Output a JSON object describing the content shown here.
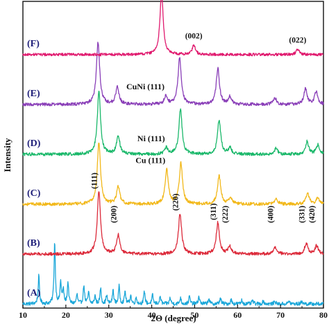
{
  "chart_data": {
    "type": "line",
    "title": "",
    "xlabel": "2Θ (degree)",
    "ylabel": "Intensity",
    "xlim": [
      10,
      80
    ],
    "x_ticks": [
      10,
      20,
      30,
      40,
      50,
      60,
      70,
      80
    ],
    "stacked_offset": true,
    "grid": false,
    "series": [
      {
        "name": "(A)",
        "color": "#1ba7d9",
        "baseline": 0,
        "peaks": [
          {
            "x": 13.7,
            "h": 0.45
          },
          {
            "x": 17.4,
            "h": 1.0
          },
          {
            "x": 18.8,
            "h": 0.35
          },
          {
            "x": 19.4,
            "h": 0.22
          },
          {
            "x": 20.5,
            "h": 0.35
          },
          {
            "x": 22.6,
            "h": 0.15
          },
          {
            "x": 24.2,
            "h": 0.3
          },
          {
            "x": 25.3,
            "h": 0.18
          },
          {
            "x": 26.8,
            "h": 0.13
          },
          {
            "x": 28.1,
            "h": 0.25
          },
          {
            "x": 29.5,
            "h": 0.14
          },
          {
            "x": 31.0,
            "h": 0.22
          },
          {
            "x": 32.4,
            "h": 0.28
          },
          {
            "x": 33.8,
            "h": 0.2
          },
          {
            "x": 35.1,
            "h": 0.14
          },
          {
            "x": 36.4,
            "h": 0.1
          },
          {
            "x": 38.3,
            "h": 0.2
          },
          {
            "x": 40.2,
            "h": 0.14
          },
          {
            "x": 42.0,
            "h": 0.12
          },
          {
            "x": 44.3,
            "h": 0.1
          },
          {
            "x": 46.7,
            "h": 0.1
          },
          {
            "x": 48.8,
            "h": 0.12
          },
          {
            "x": 51.0,
            "h": 0.12
          },
          {
            "x": 53.3,
            "h": 0.09
          },
          {
            "x": 56.0,
            "h": 0.1
          },
          {
            "x": 58.5,
            "h": 0.07
          },
          {
            "x": 61.0,
            "h": 0.06
          },
          {
            "x": 63.5,
            "h": 0.06
          },
          {
            "x": 66.0,
            "h": 0.05
          },
          {
            "x": 68.7,
            "h": 0.05
          },
          {
            "x": 72.0,
            "h": 0.05
          },
          {
            "x": 75.0,
            "h": 0.05
          }
        ],
        "peak_width": 0.18,
        "noise": 0.03
      },
      {
        "name": "(B)",
        "color": "#dc2a3a",
        "baseline": 1,
        "peaks": [
          {
            "x": 27.7,
            "h": 1.0
          },
          {
            "x": 32.2,
            "h": 0.3
          },
          {
            "x": 46.6,
            "h": 0.65
          },
          {
            "x": 55.4,
            "h": 0.5
          },
          {
            "x": 58.2,
            "h": 0.12
          },
          {
            "x": 68.8,
            "h": 0.1
          },
          {
            "x": 76.0,
            "h": 0.17
          },
          {
            "x": 78.4,
            "h": 0.13
          }
        ],
        "peak_width": 0.45,
        "noise": 0.025
      },
      {
        "name": "(C)",
        "color": "#f2b81a",
        "baseline": 2,
        "peaks": [
          {
            "x": 27.7,
            "h": 1.0
          },
          {
            "x": 32.2,
            "h": 0.28
          },
          {
            "x": 43.5,
            "h": 0.55
          },
          {
            "x": 46.8,
            "h": 0.65
          },
          {
            "x": 55.7,
            "h": 0.45
          },
          {
            "x": 58.4,
            "h": 0.1
          },
          {
            "x": 69.0,
            "h": 0.08
          },
          {
            "x": 76.3,
            "h": 0.17
          },
          {
            "x": 78.7,
            "h": 0.1
          }
        ],
        "peak_width": 0.45,
        "noise": 0.025
      },
      {
        "name": "(D)",
        "color": "#1ab86a",
        "baseline": 3,
        "peaks": [
          {
            "x": 27.7,
            "h": 1.0
          },
          {
            "x": 32.2,
            "h": 0.3
          },
          {
            "x": 43.4,
            "h": 0.1
          },
          {
            "x": 46.7,
            "h": 0.72
          },
          {
            "x": 55.7,
            "h": 0.55
          },
          {
            "x": 58.2,
            "h": 0.1
          },
          {
            "x": 69.0,
            "h": 0.1
          },
          {
            "x": 76.2,
            "h": 0.2
          },
          {
            "x": 78.7,
            "h": 0.15
          }
        ],
        "peak_width": 0.45,
        "noise": 0.025
      },
      {
        "name": "(E)",
        "color": "#8a3fb8",
        "baseline": 4,
        "peaks": [
          {
            "x": 27.5,
            "h": 1.0
          },
          {
            "x": 32.0,
            "h": 0.28
          },
          {
            "x": 43.3,
            "h": 0.13
          },
          {
            "x": 46.5,
            "h": 0.75
          },
          {
            "x": 55.4,
            "h": 0.58
          },
          {
            "x": 58.2,
            "h": 0.12
          },
          {
            "x": 68.7,
            "h": 0.1
          },
          {
            "x": 75.8,
            "h": 0.25
          },
          {
            "x": 78.3,
            "h": 0.2
          }
        ],
        "peak_width": 0.45,
        "noise": 0.025
      },
      {
        "name": "(F)",
        "color": "#e0196e",
        "baseline": 5,
        "peaks": [
          {
            "x": 42.3,
            "h": 1.0
          },
          {
            "x": 49.8,
            "h": 0.15
          },
          {
            "x": 74.0,
            "h": 0.08
          }
        ],
        "peak_width": 0.45,
        "noise": 0.022
      }
    ],
    "peak_annotations": [
      {
        "text": "(111)",
        "x": 42.3,
        "series": "(F)"
      },
      {
        "text": "(002)",
        "x": 49.8,
        "series": "(F)"
      },
      {
        "text": "(022)",
        "x": 74.0,
        "series": "(F)"
      },
      {
        "text": "(111)",
        "x": 27.7,
        "series": "(B)"
      },
      {
        "text": "(200)",
        "x": 32.2,
        "series": "(B)"
      },
      {
        "text": "(220)",
        "x": 46.6,
        "series": "(B)"
      },
      {
        "text": "(311)",
        "x": 55.4,
        "series": "(B)"
      },
      {
        "text": "(222)",
        "x": 58.2,
        "series": "(B)"
      },
      {
        "text": "(400)",
        "x": 68.8,
        "series": "(B)"
      },
      {
        "text": "(331)",
        "x": 76.0,
        "series": "(B)"
      },
      {
        "text": "(420)",
        "x": 78.4,
        "series": "(B)"
      }
    ],
    "species_annotations": [
      {
        "text": "CuNi (111)",
        "x": 43.3,
        "series": "(E)"
      },
      {
        "text": "Ni (111)",
        "x": 43.4,
        "series": "(D)"
      },
      {
        "text": "Cu (111)",
        "x": 43.5,
        "series": "(C)"
      }
    ]
  }
}
